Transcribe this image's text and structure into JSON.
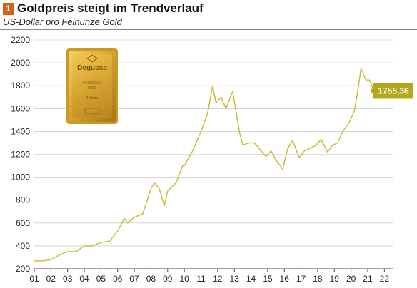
{
  "header": {
    "badge_number": "1",
    "title": "Goldpreis steigt im Trendverlauf",
    "subtitle": "US-Dollar pro Feinunze Gold"
  },
  "gold_bar": {
    "brand": "Degussa",
    "line1": "FEINGOLD",
    "line2": "999,9",
    "line3": "1 Unze"
  },
  "colors": {
    "line": "#c7ba2c",
    "badge": "#d4631a",
    "value_box": "#b5a81c",
    "grid": "#bdbdbd"
  },
  "chart_data": {
    "type": "line",
    "title": "",
    "xlabel": "",
    "ylabel": "",
    "x_tick_labels": [
      "01",
      "02",
      "03",
      "04",
      "05",
      "06",
      "07",
      "08",
      "09",
      "10",
      "11",
      "12",
      "13",
      "14",
      "15",
      "16",
      "17",
      "18",
      "19",
      "20",
      "21",
      "22"
    ],
    "y_ticks": [
      200,
      400,
      600,
      800,
      1000,
      1200,
      1400,
      1600,
      1800,
      2000,
      2200
    ],
    "ylim": [
      200,
      2200
    ],
    "xlim": [
      2001,
      2022.5
    ],
    "grid": "horizontal",
    "current_value_label": "1755,36",
    "series": [
      {
        "x": [
          2001.0,
          2001.5,
          2002.0,
          2002.5,
          2003.0,
          2003.5,
          2004.0,
          2004.5,
          2005.0,
          2005.5,
          2006.0,
          2006.4,
          2006.6,
          2007.0,
          2007.5,
          2008.0,
          2008.2,
          2008.5,
          2008.8,
          2009.0,
          2009.5,
          2009.9,
          2010.0,
          2010.5,
          2011.0,
          2011.4,
          2011.7,
          2011.9,
          2012.2,
          2012.5,
          2012.9,
          2013.3,
          2013.5,
          2013.9,
          2014.2,
          2014.5,
          2014.9,
          2015.2,
          2015.5,
          2015.9,
          2016.2,
          2016.5,
          2016.9,
          2017.2,
          2017.5,
          2017.9,
          2018.2,
          2018.6,
          2018.9,
          2019.2,
          2019.5,
          2019.9,
          2020.2,
          2020.4,
          2020.6,
          2020.9,
          2021.1,
          2021.4,
          2021.6
        ],
        "y": [
          270,
          270,
          280,
          320,
          350,
          350,
          400,
          400,
          430,
          440,
          530,
          640,
          600,
          650,
          680,
          900,
          950,
          900,
          750,
          880,
          950,
          1100,
          1100,
          1230,
          1400,
          1560,
          1800,
          1650,
          1700,
          1600,
          1750,
          1400,
          1280,
          1300,
          1300,
          1250,
          1180,
          1230,
          1150,
          1070,
          1250,
          1320,
          1170,
          1230,
          1250,
          1280,
          1330,
          1220,
          1280,
          1300,
          1400,
          1480,
          1580,
          1750,
          1950,
          1850,
          1850,
          1750,
          1755
        ]
      }
    ]
  }
}
